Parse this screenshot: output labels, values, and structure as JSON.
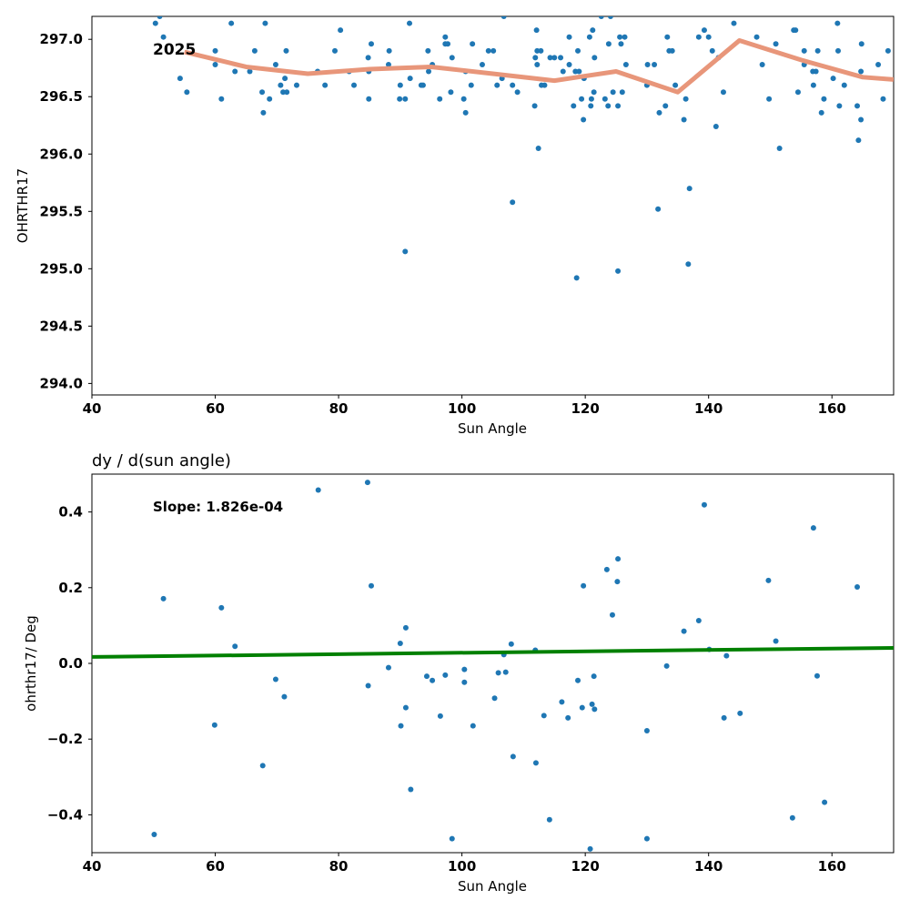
{
  "chart_data": [
    {
      "type": "scatter",
      "title": "",
      "xlabel": "Sun Angle",
      "ylabel": "OHRTHR17",
      "xlim": [
        40,
        170
      ],
      "ylim": [
        293.9,
        297.2
      ],
      "x_ticks": [
        40,
        60,
        80,
        100,
        120,
        140,
        160
      ],
      "y_ticks": [
        294.0,
        294.5,
        295.0,
        295.5,
        296.0,
        296.5,
        297.0
      ],
      "annotation": "2025",
      "point_color": "#1f77b4",
      "trend_color": "#e8967a",
      "series": [
        {
          "type": "scatter",
          "points": [
            [
              50.3,
              297.14
            ],
            [
              51,
              297.2
            ],
            [
              51.6,
              297.02
            ],
            [
              54.3,
              296.66
            ],
            [
              55.4,
              296.54
            ],
            [
              60,
              296.9
            ],
            [
              60,
              296.78
            ],
            [
              61,
              296.48
            ],
            [
              62.6,
              297.14
            ],
            [
              63.2,
              296.72
            ],
            [
              65.6,
              296.72
            ],
            [
              66.4,
              296.9
            ],
            [
              67.6,
              296.54
            ],
            [
              67.8,
              296.36
            ],
            [
              68.1,
              297.14
            ],
            [
              68.8,
              296.48
            ],
            [
              69.8,
              296.78
            ],
            [
              70.6,
              296.6
            ],
            [
              71,
              296.54
            ],
            [
              71.3,
              296.66
            ],
            [
              71.5,
              296.9
            ],
            [
              71.6,
              296.54
            ],
            [
              73.2,
              296.6
            ],
            [
              76.6,
              296.72
            ],
            [
              77.8,
              296.6
            ],
            [
              79.4,
              296.9
            ],
            [
              80.3,
              297.08
            ],
            [
              81.7,
              296.72
            ],
            [
              82.5,
              296.6
            ],
            [
              84.8,
              296.84
            ],
            [
              84.9,
              296.72
            ],
            [
              84.9,
              296.48
            ],
            [
              85.3,
              296.96
            ],
            [
              88.2,
              296.9
            ],
            [
              88.1,
              296.78
            ],
            [
              89.9,
              296.48
            ],
            [
              90,
              296.6
            ],
            [
              90.8,
              296.48
            ],
            [
              90.8,
              295.15
            ],
            [
              91.5,
              297.14
            ],
            [
              91.6,
              296.66
            ],
            [
              93.4,
              296.6
            ],
            [
              93.7,
              296.6
            ],
            [
              94.5,
              296.9
            ],
            [
              94.6,
              296.72
            ],
            [
              95.2,
              296.78
            ],
            [
              96.4,
              296.48
            ],
            [
              97.3,
              297.02
            ],
            [
              97.3,
              296.96
            ],
            [
              97.7,
              296.96
            ],
            [
              98.2,
              296.54
            ],
            [
              98.4,
              296.84
            ],
            [
              100.3,
              296.48
            ],
            [
              100.6,
              296.36
            ],
            [
              100.6,
              296.72
            ],
            [
              101.5,
              296.6
            ],
            [
              101.7,
              296.96
            ],
            [
              103.3,
              296.78
            ],
            [
              104.3,
              296.9
            ],
            [
              105.1,
              296.9
            ],
            [
              105.7,
              296.6
            ],
            [
              106.5,
              296.66
            ],
            [
              106.8,
              297.2
            ],
            [
              108.2,
              295.58
            ],
            [
              108.2,
              296.6
            ],
            [
              109,
              296.54
            ],
            [
              111.8,
              296.42
            ],
            [
              111.9,
              296.84
            ],
            [
              112.1,
              297.08
            ],
            [
              112.2,
              296.9
            ],
            [
              112.2,
              296.78
            ],
            [
              112.4,
              296.05
            ],
            [
              112.8,
              296.9
            ],
            [
              112.9,
              296.6
            ],
            [
              113.4,
              296.6
            ],
            [
              114.3,
              296.84
            ],
            [
              115,
              296.84
            ],
            [
              116,
              296.84
            ],
            [
              116.4,
              296.72
            ],
            [
              117.4,
              296.78
            ],
            [
              117.4,
              297.02
            ],
            [
              118.1,
              296.42
            ],
            [
              118.4,
              296.72
            ],
            [
              118.6,
              294.92
            ],
            [
              118.8,
              296.9
            ],
            [
              119,
              296.72
            ],
            [
              119.4,
              296.48
            ],
            [
              119.7,
              296.3
            ],
            [
              119.8,
              296.66
            ],
            [
              120.7,
              297.02
            ],
            [
              120.9,
              296.42
            ],
            [
              121,
              296.48
            ],
            [
              121.2,
              297.08
            ],
            [
              121.4,
              296.54
            ],
            [
              121.5,
              296.84
            ],
            [
              122.6,
              297.2
            ],
            [
              123.2,
              296.48
            ],
            [
              123.7,
              296.42
            ],
            [
              123.8,
              296.96
            ],
            [
              124.1,
              297.2
            ],
            [
              124.5,
              296.54
            ],
            [
              125.3,
              294.98
            ],
            [
              125.3,
              296.42
            ],
            [
              125.6,
              297.02
            ],
            [
              125.8,
              296.96
            ],
            [
              126,
              296.54
            ],
            [
              126.4,
              297.02
            ],
            [
              126.6,
              296.78
            ],
            [
              130,
              296.6
            ],
            [
              130.1,
              296.78
            ],
            [
              131.2,
              296.78
            ],
            [
              131.8,
              295.52
            ],
            [
              132,
              296.36
            ],
            [
              133,
              296.42
            ],
            [
              133.3,
              297.02
            ],
            [
              133.6,
              296.9
            ],
            [
              134.1,
              296.9
            ],
            [
              134.6,
              296.6
            ],
            [
              136,
              296.3
            ],
            [
              136.3,
              296.48
            ],
            [
              136.7,
              295.04
            ],
            [
              136.9,
              295.7
            ],
            [
              138.4,
              297.02
            ],
            [
              139.3,
              297.08
            ],
            [
              140,
              297.02
            ],
            [
              140.6,
              296.9
            ],
            [
              141.2,
              296.24
            ],
            [
              141.6,
              296.84
            ],
            [
              142.4,
              296.54
            ],
            [
              144.1,
              297.14
            ],
            [
              147.8,
              297.02
            ],
            [
              148.7,
              296.78
            ],
            [
              149.8,
              296.48
            ],
            [
              150.9,
              296.96
            ],
            [
              151.5,
              296.05
            ],
            [
              153.8,
              297.08
            ],
            [
              154.1,
              297.08
            ],
            [
              154.5,
              296.54
            ],
            [
              155.5,
              296.9
            ],
            [
              155.5,
              296.78
            ],
            [
              156.9,
              296.72
            ],
            [
              157,
              296.6
            ],
            [
              157.4,
              296.72
            ],
            [
              157.7,
              296.9
            ],
            [
              158.3,
              296.36
            ],
            [
              158.7,
              296.48
            ],
            [
              160.2,
              296.66
            ],
            [
              160.9,
              297.14
            ],
            [
              161,
              296.9
            ],
            [
              161.2,
              296.42
            ],
            [
              162,
              296.6
            ],
            [
              164.1,
              296.42
            ],
            [
              164.3,
              296.12
            ],
            [
              164.7,
              296.3
            ],
            [
              164.7,
              296.72
            ],
            [
              164.8,
              296.96
            ],
            [
              167.5,
              296.78
            ],
            [
              168.3,
              296.48
            ],
            [
              169.1,
              296.9
            ]
          ]
        },
        {
          "type": "line",
          "points": [
            [
              55,
              296.89
            ],
            [
              65,
              296.76
            ],
            [
              75,
              296.7
            ],
            [
              85,
              296.74
            ],
            [
              95,
              296.76
            ],
            [
              105,
              296.7
            ],
            [
              115,
              296.64
            ],
            [
              125,
              296.72
            ],
            [
              135,
              296.54
            ],
            [
              145,
              296.99
            ],
            [
              155,
              296.82
            ],
            [
              165,
              296.67
            ],
            [
              170,
              296.65
            ]
          ]
        }
      ]
    },
    {
      "type": "scatter",
      "title": "dy / d(sun angle)",
      "xlabel": "Sun Angle",
      "ylabel": "ohrthr17/ Deg",
      "xlim": [
        40,
        170
      ],
      "ylim": [
        -0.5,
        0.5
      ],
      "x_ticks": [
        40,
        60,
        80,
        100,
        120,
        140,
        160
      ],
      "y_ticks": [
        -0.4,
        -0.2,
        0.0,
        0.2,
        0.4
      ],
      "y_tick_labels": [
        "−0.4",
        "−0.2",
        "0.0",
        "0.2",
        "0.4"
      ],
      "annotation": "Slope: 1.826e-04",
      "point_color": "#1f77b4",
      "fit_color": "#008000",
      "series": [
        {
          "type": "scatter",
          "points": [
            [
              50.1,
              -0.452
            ],
            [
              51.6,
              0.171
            ],
            [
              59.9,
              -0.163
            ],
            [
              61,
              0.147
            ],
            [
              63.2,
              0.045
            ],
            [
              67.7,
              -0.27
            ],
            [
              69.8,
              -0.042
            ],
            [
              71.2,
              -0.088
            ],
            [
              76.7,
              0.458
            ],
            [
              84.7,
              0.478
            ],
            [
              84.8,
              -0.059
            ],
            [
              85.3,
              0.205
            ],
            [
              88.1,
              -0.011
            ],
            [
              90,
              0.053
            ],
            [
              90.1,
              -0.165
            ],
            [
              90.9,
              0.094
            ],
            [
              90.9,
              -0.117
            ],
            [
              91.7,
              -0.333
            ],
            [
              94.3,
              -0.034
            ],
            [
              95.2,
              -0.045
            ],
            [
              96.5,
              -0.139
            ],
            [
              97.3,
              -0.031
            ],
            [
              98.4,
              -0.463
            ],
            [
              100.4,
              -0.016
            ],
            [
              100.4,
              -0.05
            ],
            [
              101.8,
              -0.165
            ],
            [
              105.3,
              -0.092
            ],
            [
              105.9,
              -0.025
            ],
            [
              106.8,
              0.023
            ],
            [
              107.1,
              -0.023
            ],
            [
              108,
              0.051
            ],
            [
              108.3,
              -0.246
            ],
            [
              111.9,
              0.035
            ],
            [
              112,
              -0.263
            ],
            [
              113.3,
              -0.138
            ],
            [
              114.2,
              -0.413
            ],
            [
              116.2,
              -0.102
            ],
            [
              117.2,
              -0.144
            ],
            [
              118.8,
              -0.045
            ],
            [
              119.5,
              -0.117
            ],
            [
              119.7,
              0.205
            ],
            [
              120.8,
              -0.49
            ],
            [
              121.1,
              -0.108
            ],
            [
              121.4,
              -0.034
            ],
            [
              121.5,
              -0.121
            ],
            [
              123.5,
              0.248
            ],
            [
              124.4,
              0.128
            ],
            [
              125.2,
              0.216
            ],
            [
              125.3,
              0.276
            ],
            [
              130,
              -0.178
            ],
            [
              130,
              -0.463
            ],
            [
              133.2,
              -0.007
            ],
            [
              136,
              0.085
            ],
            [
              138.4,
              0.113
            ],
            [
              139.3,
              0.419
            ],
            [
              140.1,
              0.037
            ],
            [
              142.5,
              -0.144
            ],
            [
              142.9,
              0.02
            ],
            [
              145.1,
              -0.132
            ],
            [
              149.7,
              0.219
            ],
            [
              150.9,
              0.059
            ],
            [
              153.6,
              -0.408
            ],
            [
              157,
              0.358
            ],
            [
              157.6,
              -0.033
            ],
            [
              158.8,
              -0.367
            ],
            [
              164.1,
              0.202
            ]
          ]
        },
        {
          "type": "line",
          "points": [
            [
              40,
              0.017
            ],
            [
              170,
              0.041
            ]
          ]
        }
      ]
    }
  ]
}
